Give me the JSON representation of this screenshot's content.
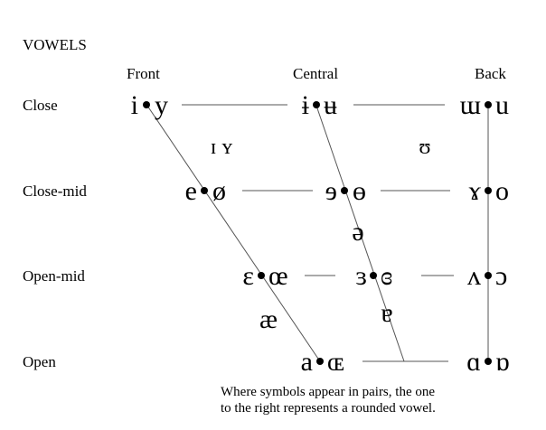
{
  "title": "VOWELS",
  "columns": {
    "front": "Front",
    "central": "Central",
    "back": "Back"
  },
  "rows": {
    "close": "Close",
    "close_mid": "Close-mid",
    "open_mid": "Open-mid",
    "open": "Open"
  },
  "pairs": {
    "close_front": {
      "unrounded": "i",
      "rounded": "y"
    },
    "close_central": {
      "unrounded": "ɨ",
      "rounded": "ʉ"
    },
    "close_back": {
      "unrounded": "ɯ",
      "rounded": "u"
    },
    "closemid_front": {
      "unrounded": "e",
      "rounded": "ø"
    },
    "closemid_central": {
      "unrounded": "ɘ",
      "rounded": "ɵ"
    },
    "closemid_back": {
      "unrounded": "ɤ",
      "rounded": "o"
    },
    "openmid_front": {
      "unrounded": "ɛ",
      "rounded": "œ"
    },
    "openmid_central": {
      "unrounded": "ɜ",
      "rounded": "ɞ"
    },
    "openmid_back": {
      "unrounded": "ʌ",
      "rounded": "ɔ"
    },
    "open_front": {
      "unrounded": "a",
      "rounded": "ɶ"
    },
    "open_back": {
      "unrounded": "ɑ",
      "rounded": "ɒ"
    }
  },
  "loose": {
    "near_close_front": "ɪ ʏ",
    "near_close_back": "ʊ",
    "mid_central": "ə",
    "near_open_front": "æ",
    "near_open_central": "ɐ"
  },
  "note": {
    "line1": "Where symbols appear in pairs, the one",
    "line2": "to the right represents a rounded vowel."
  }
}
